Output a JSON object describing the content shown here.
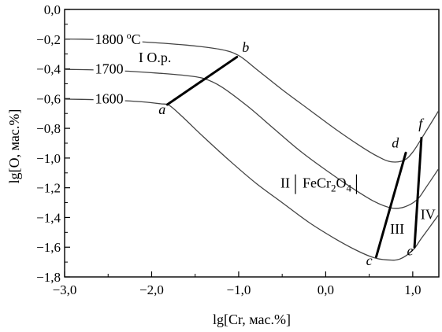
{
  "chart_data": {
    "type": "line",
    "xlabel": "lg[Cr, мас.%]",
    "ylabel": "lg[O, мас.%]",
    "xlim": [
      -3.0,
      1.3
    ],
    "ylim": [
      -1.8,
      0.0
    ],
    "x_ticks": [
      -3.0,
      -2.0,
      -1.0,
      0.0,
      1.0
    ],
    "y_ticks": [
      0.0,
      -0.2,
      -0.4,
      -0.6,
      -0.8,
      -1.0,
      -1.2,
      -1.4,
      -1.6,
      -1.8
    ],
    "x_tick_labels": [
      "−3,0",
      "−2,0",
      "−1,0",
      "0,0",
      "1,0"
    ],
    "y_tick_labels": [
      "0,0",
      "−0,2",
      "−0,4",
      "−0,6",
      "−0,8",
      "−1,0",
      "−1,2",
      "−1,4",
      "−1,6",
      "−1,8"
    ],
    "series": [
      {
        "name": "1800 °C",
        "label_main": "1800",
        "label_deg": "o",
        "label_unit": "C",
        "points": [
          [
            -3.55,
            -0.2
          ],
          [
            -2.8,
            -0.2
          ],
          [
            -2.2,
            -0.215
          ],
          [
            -1.6,
            -0.24
          ],
          [
            -1.2,
            -0.27
          ],
          [
            -1.0,
            -0.31
          ],
          [
            -0.8,
            -0.4
          ],
          [
            -0.5,
            -0.54
          ],
          [
            -0.2,
            -0.67
          ],
          [
            0.1,
            -0.8
          ],
          [
            0.4,
            -0.92
          ],
          [
            0.6,
            -0.99
          ],
          [
            0.75,
            -1.025
          ],
          [
            0.9,
            -1.015
          ],
          [
            1.0,
            -0.96
          ],
          [
            1.1,
            -0.87
          ],
          [
            1.3,
            -0.68
          ]
        ]
      },
      {
        "name": "1700",
        "label_main": "1700",
        "points": [
          [
            -3.55,
            -0.4
          ],
          [
            -2.8,
            -0.405
          ],
          [
            -2.3,
            -0.415
          ],
          [
            -1.9,
            -0.43
          ],
          [
            -1.6,
            -0.445
          ],
          [
            -1.4,
            -0.465
          ],
          [
            -1.2,
            -0.52
          ],
          [
            -0.9,
            -0.65
          ],
          [
            -0.6,
            -0.8
          ],
          [
            -0.3,
            -0.95
          ],
          [
            0.0,
            -1.08
          ],
          [
            0.3,
            -1.2
          ],
          [
            0.55,
            -1.29
          ],
          [
            0.75,
            -1.335
          ],
          [
            0.9,
            -1.33
          ],
          [
            1.05,
            -1.28
          ],
          [
            1.15,
            -1.2
          ],
          [
            1.3,
            -1.07
          ]
        ]
      },
      {
        "name": "1600",
        "label_main": "1600",
        "points": [
          [
            -3.55,
            -0.6
          ],
          [
            -2.8,
            -0.605
          ],
          [
            -2.4,
            -0.612
          ],
          [
            -2.1,
            -0.622
          ],
          [
            -1.9,
            -0.635
          ],
          [
            -1.8,
            -0.645
          ],
          [
            -1.65,
            -0.72
          ],
          [
            -1.4,
            -0.86
          ],
          [
            -1.1,
            -1.02
          ],
          [
            -0.8,
            -1.17
          ],
          [
            -0.5,
            -1.3
          ],
          [
            -0.2,
            -1.43
          ],
          [
            0.1,
            -1.54
          ],
          [
            0.35,
            -1.62
          ],
          [
            0.55,
            -1.67
          ],
          [
            0.7,
            -1.685
          ],
          [
            0.85,
            -1.68
          ],
          [
            1.0,
            -1.62
          ],
          [
            1.1,
            -1.54
          ],
          [
            1.2,
            -1.46
          ],
          [
            1.3,
            -1.38
          ]
        ]
      }
    ],
    "boundaries": [
      {
        "name": "a-b",
        "points": [
          [
            -1.82,
            -0.64
          ],
          [
            -1.02,
            -0.32
          ]
        ]
      },
      {
        "name": "c-d",
        "points": [
          [
            0.58,
            -1.665
          ],
          [
            0.92,
            -0.965
          ]
        ]
      },
      {
        "name": "e-f",
        "points": [
          [
            1.02,
            -1.6
          ],
          [
            1.1,
            -0.865
          ]
        ]
      }
    ],
    "point_labels": [
      {
        "text": "a",
        "x": -1.88,
        "y": -0.705
      },
      {
        "text": "b",
        "x": -0.92,
        "y": -0.285
      },
      {
        "text": "c",
        "x": 0.5,
        "y": -1.72
      },
      {
        "text": "d",
        "x": 0.8,
        "y": -0.93
      },
      {
        "text": "e",
        "x": 0.97,
        "y": -1.655
      },
      {
        "text": "f",
        "x": 1.09,
        "y": -0.8
      }
    ],
    "region_labels": [
      {
        "text": "I  O.p.",
        "x": -2.15,
        "y": -0.355
      },
      {
        "text": "III",
        "x": 0.74,
        "y": -1.51
      },
      {
        "text": "IV",
        "x": 1.09,
        "y": -1.41
      }
    ],
    "region_II": {
      "roman": "II",
      "formula": "FeCr",
      "sub1": "2",
      "formula2": "O",
      "sub2": "4",
      "x": -0.52,
      "y": -1.2
    }
  }
}
